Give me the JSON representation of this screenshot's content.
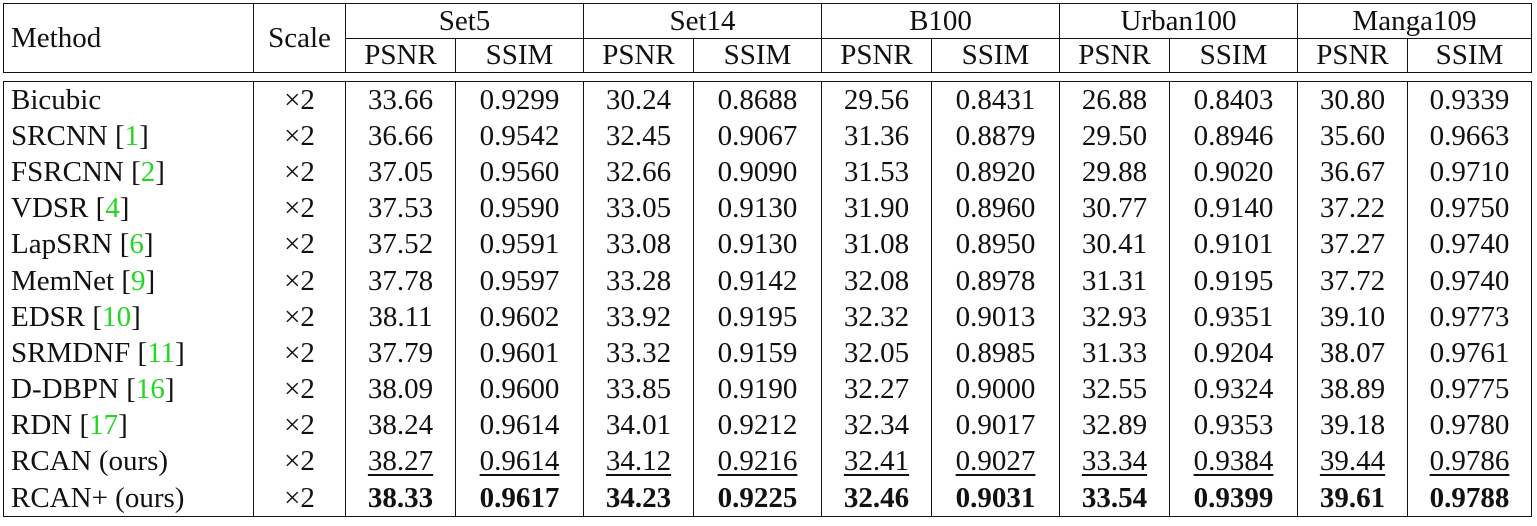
{
  "header": {
    "method": "Method",
    "scale": "Scale",
    "datasets": [
      "Set5",
      "Set14",
      "B100",
      "Urban100",
      "Manga109"
    ],
    "psnr": "PSNR",
    "ssim": "SSIM"
  },
  "rows": [
    {
      "name": "Bicubic",
      "ref": "",
      "scale": "×2",
      "vals": [
        "33.66",
        "0.9299",
        "30.24",
        "0.8688",
        "29.56",
        "0.8431",
        "26.88",
        "0.8403",
        "30.80",
        "0.9339"
      ]
    },
    {
      "name": "SRCNN ",
      "ref": "1",
      "scale": "×2",
      "vals": [
        "36.66",
        "0.9542",
        "32.45",
        "0.9067",
        "31.36",
        "0.8879",
        "29.50",
        "0.8946",
        "35.60",
        "0.9663"
      ]
    },
    {
      "name": "FSRCNN ",
      "ref": "2",
      "scale": "×2",
      "vals": [
        "37.05",
        "0.9560",
        "32.66",
        "0.9090",
        "31.53",
        "0.8920",
        "29.88",
        "0.9020",
        "36.67",
        "0.9710"
      ]
    },
    {
      "name": "VDSR ",
      "ref": "4",
      "scale": "×2",
      "vals": [
        "37.53",
        "0.9590",
        "33.05",
        "0.9130",
        "31.90",
        "0.8960",
        "30.77",
        "0.9140",
        "37.22",
        "0.9750"
      ]
    },
    {
      "name": "LapSRN ",
      "ref": "6",
      "scale": "×2",
      "vals": [
        "37.52",
        "0.9591",
        "33.08",
        "0.9130",
        "31.08",
        "0.8950",
        "30.41",
        "0.9101",
        "37.27",
        "0.9740"
      ]
    },
    {
      "name": "MemNet ",
      "ref": "9",
      "scale": "×2",
      "vals": [
        "37.78",
        "0.9597",
        "33.28",
        "0.9142",
        "32.08",
        "0.8978",
        "31.31",
        "0.9195",
        "37.72",
        "0.9740"
      ]
    },
    {
      "name": "EDSR ",
      "ref": "10",
      "scale": "×2",
      "vals": [
        "38.11",
        "0.9602",
        "33.92",
        "0.9195",
        "32.32",
        "0.9013",
        "32.93",
        "0.9351",
        "39.10",
        "0.9773"
      ]
    },
    {
      "name": "SRMDNF ",
      "ref": "11",
      "scale": "×2",
      "vals": [
        "37.79",
        "0.9601",
        "33.32",
        "0.9159",
        "32.05",
        "0.8985",
        "31.33",
        "0.9204",
        "38.07",
        "0.9761"
      ]
    },
    {
      "name": "D-DBPN ",
      "ref": "16",
      "scale": "×2",
      "vals": [
        "38.09",
        "0.9600",
        "33.85",
        "0.9190",
        "32.27",
        "0.9000",
        "32.55",
        "0.9324",
        "38.89",
        "0.9775"
      ]
    },
    {
      "name": "RDN ",
      "ref": "17",
      "scale": "×2",
      "vals": [
        "38.24",
        "0.9614",
        "34.01",
        "0.9212",
        "32.34",
        "0.9017",
        "32.89",
        "0.9353",
        "39.18",
        "0.9780"
      ]
    },
    {
      "name": "RCAN (ours)",
      "ref": "",
      "scale": "×2",
      "style": "underline",
      "vals": [
        "38.27",
        "0.9614",
        "34.12",
        "0.9216",
        "32.41",
        "0.9027",
        "33.34",
        "0.9384",
        "39.44",
        "0.9786"
      ]
    },
    {
      "name": "RCAN+ (ours)",
      "ref": "",
      "scale": "×2",
      "style": "bold",
      "vals": [
        "38.33",
        "0.9617",
        "34.23",
        "0.9225",
        "32.46",
        "0.9031",
        "33.54",
        "0.9399",
        "39.61",
        "0.9788"
      ]
    }
  ]
}
